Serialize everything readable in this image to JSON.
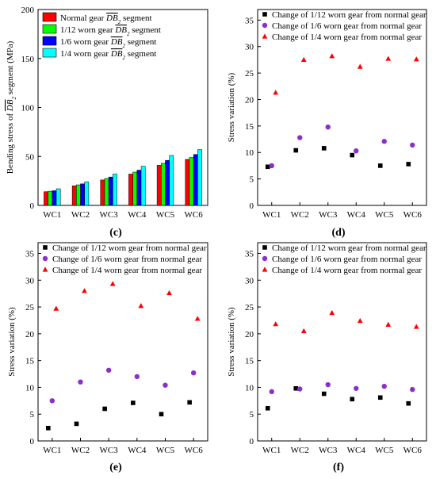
{
  "colors": {
    "normal": "#ff0000",
    "w12": "#00ff00",
    "w16": "#0000ff",
    "w14": "#00ffff",
    "sq": "#000000",
    "circ": "#8b2fc9",
    "tri": "#ff0000"
  },
  "chart_data": [
    {
      "id": "c",
      "panel_label": "(c)",
      "type": "bar",
      "categories": [
        "WC1",
        "WC2",
        "WC3",
        "WC4",
        "WC5",
        "WC6"
      ],
      "ylabel_prefix": "Bending stress of",
      "ylabel_seg": "DB",
      "ylabel_sub": "2",
      "ylabel_suffix": "segment (MPa)",
      "ylim": [
        0,
        200
      ],
      "yticks": [
        0,
        50,
        100,
        150,
        200
      ],
      "legend_position": "top-left",
      "series": [
        {
          "key": "normal",
          "name_prefix": "Normal gear",
          "values": [
            14,
            20,
            26,
            32,
            41,
            47
          ]
        },
        {
          "key": "w12",
          "name_prefix": "1/12 worn gear",
          "values": [
            14.5,
            21,
            27.5,
            34,
            43,
            49
          ]
        },
        {
          "key": "w16",
          "name_prefix": "1/6 worn gear",
          "values": [
            15,
            22,
            29,
            36,
            46,
            52
          ]
        },
        {
          "key": "w14",
          "name_prefix": "1/4 worn gear",
          "values": [
            17,
            24,
            32,
            40,
            51,
            57
          ]
        }
      ],
      "series_seg": "DB",
      "series_sub": "2",
      "series_suffix": "segment"
    },
    {
      "id": "d",
      "panel_label": "(d)",
      "type": "scatter",
      "categories": [
        "WC1",
        "WC2",
        "WC3",
        "WC4",
        "WC5",
        "WC6"
      ],
      "ylabel": "Stress variation (%)",
      "ylim": [
        0,
        37
      ],
      "yticks": [
        0,
        5,
        10,
        15,
        20,
        25,
        30,
        35
      ],
      "legend_position": "top",
      "series": [
        {
          "key": "sq",
          "name": "Change of 1/12 worn gear from normal gear",
          "values": [
            7.3,
            10.4,
            10.8,
            9.5,
            7.5,
            7.8
          ]
        },
        {
          "key": "circ",
          "name": "Change of 1/6 worn gear from normal gear",
          "values": [
            7.5,
            12.8,
            14.8,
            10.3,
            12.1,
            11.4
          ]
        },
        {
          "key": "tri",
          "name": "Change of 1/4 worn gear from normal gear",
          "values": [
            21.3,
            27.5,
            28.2,
            26.2,
            27.7,
            27.6
          ]
        }
      ]
    },
    {
      "id": "e",
      "panel_label": "(e)",
      "type": "scatter",
      "categories": [
        "WC1",
        "WC2",
        "WC3",
        "WC4",
        "WC5",
        "WC6"
      ],
      "ylabel": "Stress variation (%)",
      "ylim": [
        0,
        37
      ],
      "yticks": [
        0,
        5,
        10,
        15,
        20,
        25,
        30,
        35
      ],
      "legend_position": "top",
      "series": [
        {
          "key": "sq",
          "name": "Change of 1/12 worn gear from normal gear",
          "values": [
            2.4,
            3.2,
            6.0,
            7.1,
            5.0,
            7.2
          ]
        },
        {
          "key": "circ",
          "name": "Change of 1/6 worn gear from normal gear",
          "values": [
            7.5,
            11.0,
            13.2,
            12.0,
            10.4,
            12.7
          ]
        },
        {
          "key": "tri",
          "name": "Change of 1/4 worn gear from normal gear",
          "values": [
            24.7,
            28.0,
            29.3,
            25.2,
            27.6,
            22.8
          ]
        }
      ]
    },
    {
      "id": "f",
      "panel_label": "(f)",
      "type": "scatter",
      "categories": [
        "WC1",
        "WC2",
        "WC3",
        "WC4",
        "WC5",
        "WC6"
      ],
      "ylabel": "Stress variation (%)",
      "ylim": [
        0,
        37
      ],
      "yticks": [
        0,
        5,
        10,
        15,
        20,
        25,
        30,
        35
      ],
      "legend_position": "top",
      "series": [
        {
          "key": "sq",
          "name": "Change of 1/12 worn gear from normal gear",
          "values": [
            6.1,
            9.8,
            8.8,
            7.8,
            8.1,
            7.0
          ]
        },
        {
          "key": "circ",
          "name": "Change of 1/6 worn gear from normal gear",
          "values": [
            9.2,
            9.7,
            10.5,
            9.8,
            10.2,
            9.6
          ]
        },
        {
          "key": "tri",
          "name": "Change of 1/4 worn gear from normal gear",
          "values": [
            21.8,
            20.5,
            23.9,
            22.4,
            21.7,
            21.3
          ]
        }
      ]
    }
  ]
}
